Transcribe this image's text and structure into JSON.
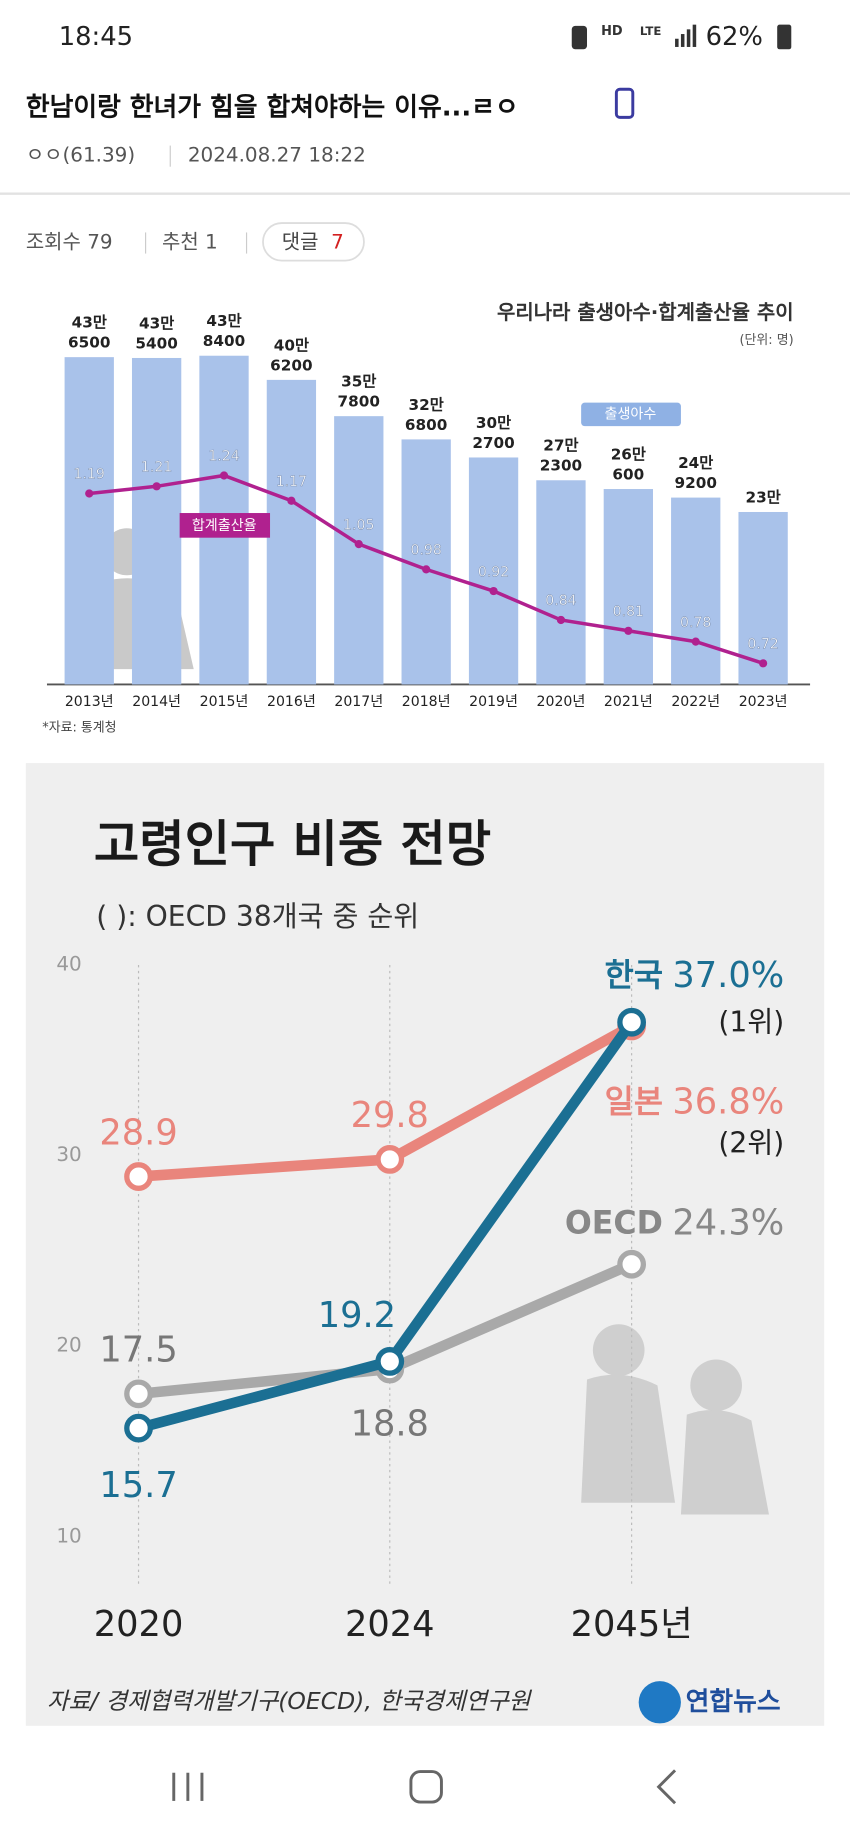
{
  "status_bar": {
    "time": "18:45",
    "network": [
      "HD",
      "LTE"
    ],
    "battery": "62%"
  },
  "post": {
    "title": "한남이랑 한녀가 힘을 합쳐야하는 이유...ㄹㅇ",
    "author": "ㅇㅇ(61.39)",
    "date": "2024.08.27 18:22",
    "views": "조회수 79",
    "recommend": "추천 1",
    "comments_label": "댓글",
    "comments": "7"
  },
  "chart_data": [
    {
      "type": "bar",
      "title": "우리나라 출생아수·합계출산율 추이",
      "unit": "(단위: 명)",
      "source": "*자료: 통계청",
      "categories": [
        "2013년",
        "2014년",
        "2015년",
        "2016년",
        "2017년",
        "2018년",
        "2019년",
        "2020년",
        "2021년",
        "2022년",
        "2023년"
      ],
      "series": [
        {
          "name": "출생아수",
          "type": "bar",
          "color": "#a9c2ea",
          "values": [
            436500,
            435400,
            438400,
            406200,
            357800,
            326800,
            302700,
            272300,
            260600,
            249200,
            230000
          ],
          "value_labels": [
            [
              "43만",
              "6500"
            ],
            [
              "43만",
              "5400"
            ],
            [
              "43만",
              "8400"
            ],
            [
              "40만",
              "6200"
            ],
            [
              "35만",
              "7800"
            ],
            [
              "32만",
              "6800"
            ],
            [
              "30만",
              "2700"
            ],
            [
              "27만",
              "2300"
            ],
            [
              "26만",
              "600"
            ],
            [
              "24만",
              "9200"
            ],
            [
              "23만"
            ]
          ]
        },
        {
          "name": "합계출산율",
          "type": "line",
          "color": "#b0218f",
          "values": [
            1.19,
            1.21,
            1.24,
            1.17,
            1.05,
            0.98,
            0.92,
            0.84,
            0.81,
            0.78,
            0.72
          ]
        }
      ]
    },
    {
      "type": "line",
      "title": "고령인구 비중 전망",
      "subtitle": "(   ): OECD 38개국 중 순위",
      "source": "자료/ 경제협력개발기구(OECD), 한국경제연구원",
      "logo": "연합뉴스",
      "categories": [
        "2020",
        "2024",
        "2045년"
      ],
      "ylim": [
        10,
        40
      ],
      "yticks": [
        10,
        20,
        30,
        40
      ],
      "series": [
        {
          "name": "한국",
          "color": "#1b6f93",
          "values": [
            15.7,
            19.2,
            37.0
          ],
          "value_labels": [
            "15.7",
            "19.2",
            "37.0%"
          ],
          "annotation": "(1위)"
        },
        {
          "name": "일본",
          "color": "#e9857c",
          "values": [
            28.9,
            29.8,
            36.8
          ],
          "value_labels": [
            "28.9",
            "29.8",
            "36.8%"
          ],
          "annotation": "(2위)"
        },
        {
          "name": "OECD",
          "color": "#a9a9a9",
          "values": [
            17.5,
            18.8,
            24.3
          ],
          "value_labels": [
            "17.5",
            "18.8",
            "24.3%"
          ]
        }
      ]
    }
  ]
}
